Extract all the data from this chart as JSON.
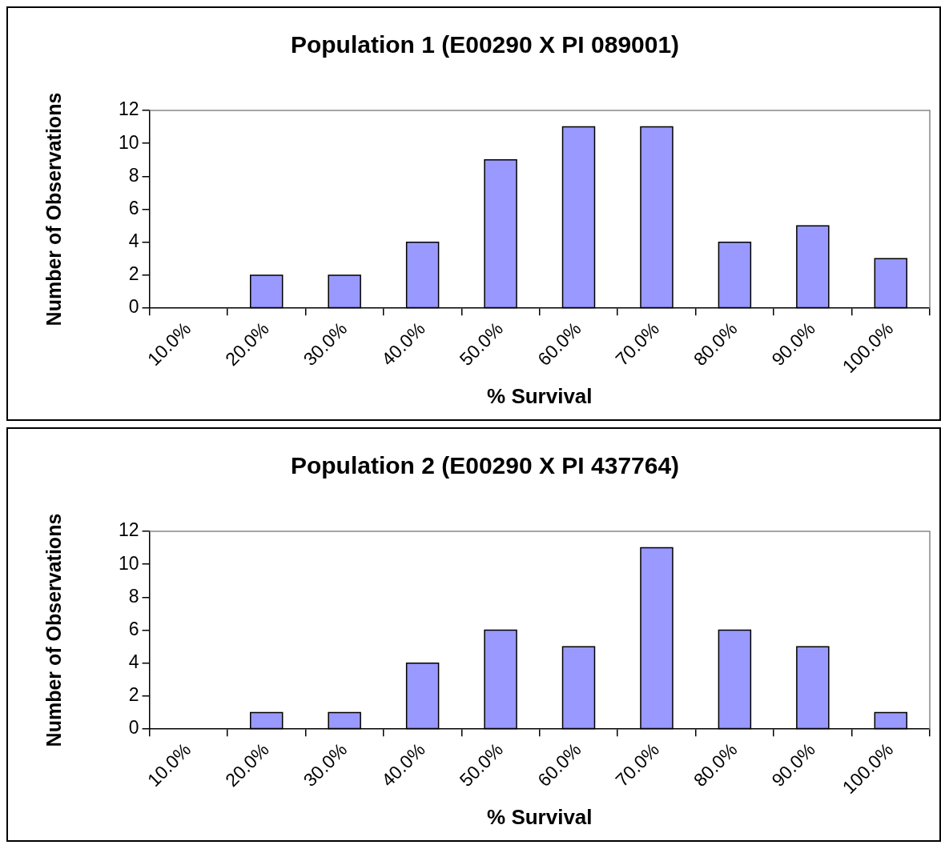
{
  "chart_data": [
    {
      "type": "bar",
      "title": "Population 1 (E00290 X PI 089001)",
      "xlabel": "% Survival",
      "ylabel": "Number of Observations",
      "categories": [
        "10.0%",
        "20.0%",
        "30.0%",
        "40.0%",
        "50.0%",
        "60.0%",
        "70.0%",
        "80.0%",
        "90.0%",
        "100.0%"
      ],
      "values": [
        0,
        2,
        2,
        4,
        9,
        11,
        11,
        4,
        5,
        3
      ],
      "color": "#9999ff",
      "ylim": [
        0,
        12
      ],
      "yticks": [
        0,
        2,
        4,
        6,
        8,
        10,
        12
      ],
      "grid": false,
      "legend": false
    },
    {
      "type": "bar",
      "title": "Population 2 (E00290 X PI 437764)",
      "xlabel": "% Survival",
      "ylabel": "Number of Observations",
      "categories": [
        "10.0%",
        "20.0%",
        "30.0%",
        "40.0%",
        "50.0%",
        "60.0%",
        "70.0%",
        "80.0%",
        "90.0%",
        "100.0%"
      ],
      "values": [
        0,
        1,
        1,
        4,
        6,
        5,
        11,
        6,
        5,
        1
      ],
      "color": "#9999ff",
      "ylim": [
        0,
        12
      ],
      "yticks": [
        0,
        2,
        4,
        6,
        8,
        10,
        12
      ],
      "grid": false,
      "legend": false
    }
  ]
}
